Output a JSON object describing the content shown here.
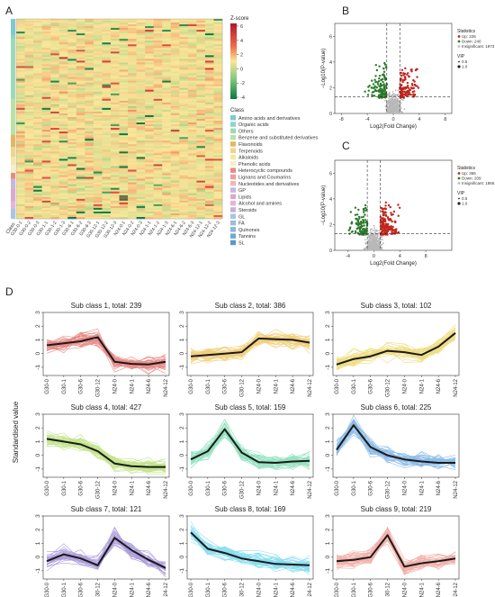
{
  "panels": {
    "A": "A",
    "B": "B",
    "C": "C",
    "D": "D"
  },
  "heatmap": {
    "zscore_title": "Z-score",
    "zscore_ticks": [
      "6",
      "4",
      "2",
      "0",
      "-2",
      "-4"
    ],
    "class_title": "Class",
    "class_column_label": "Class",
    "samples": [
      "G30-0-1",
      "G30-0-2",
      "G30-0-3",
      "G30-1-1",
      "G30-1-2",
      "G30-1-3",
      "G30-6-1",
      "G30-6-2",
      "G30-6-3",
      "G30-12-1",
      "G30-12-2",
      "G30-12-3",
      "N24-0-1",
      "N24-0-2",
      "N24-0-3",
      "N24-1-1",
      "N24-1-2",
      "N24-1-3",
      "N24-6-1",
      "N24-6-2",
      "N24-6-3",
      "N24-12-1",
      "N24-12-2",
      "N24-12-3"
    ],
    "classes": [
      {
        "name": "Amino acids and derivatives",
        "color": "#7fc9cf"
      },
      {
        "name": "Organic acids",
        "color": "#8fd3c6"
      },
      {
        "name": "Others",
        "color": "#9fd9b8"
      },
      {
        "name": "Benzene and substituted derivatives",
        "color": "#b9e2a6"
      },
      {
        "name": "Flavonoids",
        "color": "#e6b75c"
      },
      {
        "name": "Terpenoids",
        "color": "#eed58a"
      },
      {
        "name": "Alkaloids",
        "color": "#f3e8a6"
      },
      {
        "name": "Phenolic acids",
        "color": "#f6efc4"
      },
      {
        "name": "Heterocyclic compounds",
        "color": "#e88a84"
      },
      {
        "name": "Lignans and Coumarins",
        "color": "#ec9e9a"
      },
      {
        "name": "Nucleotides and derivatives",
        "color": "#f0b8b2"
      },
      {
        "name": "GP",
        "color": "#c6b7dd"
      },
      {
        "name": "Lipids",
        "color": "#d9a9cf"
      },
      {
        "name": "Alcohol and amines",
        "color": "#e5b5d7"
      },
      {
        "name": "Steroids",
        "color": "#c9b0d6"
      },
      {
        "name": "GL",
        "color": "#a8c6e4"
      },
      {
        "name": "FA",
        "color": "#9cbddc"
      },
      {
        "name": "Quinones",
        "color": "#88b9da"
      },
      {
        "name": "Tannins",
        "color": "#6fa9d1"
      },
      {
        "name": "SL",
        "color": "#5d99c6"
      }
    ]
  },
  "volcano_b": {
    "ylabel": "−Log10(P-value)",
    "xlabel": "Log2(Fold Change)",
    "x_ticks": [
      "-8",
      "-4",
      "0",
      "4",
      "8"
    ],
    "y_ticks": [
      "0",
      "2",
      "4",
      "6"
    ],
    "legend_title": "Statistics",
    "legend_items": [
      "Up: 226",
      "Down: 240",
      "Insignificant: 1973"
    ],
    "vip_title": "VIP",
    "vip_items": [
      "0.5",
      "1.0"
    ]
  },
  "volcano_c": {
    "ylabel": "−Log10(P-value)",
    "xlabel": "Log2(Fold Change)",
    "x_ticks": [
      "-4",
      "0",
      "4",
      "8"
    ],
    "y_ticks": [
      "0",
      "2",
      "4",
      "6"
    ],
    "legend_title": "Statistics",
    "legend_items": [
      "Up: 365",
      "Down: 209",
      "Insignificant: 1865"
    ],
    "vip_title": "VIP",
    "vip_items": [
      "0.5",
      "1.0"
    ]
  },
  "colors": {
    "up": "#c0271e",
    "down": "#2c7a2c",
    "ns": "#b8b8b8",
    "mean": "#1a1a1a"
  },
  "chart_data": {
    "type": "line",
    "ylabel": "Standardised value",
    "x": [
      "G30-0",
      "G30-1",
      "G30-6",
      "G30-12",
      "N24-0",
      "N24-1",
      "N24-6",
      "N24-12"
    ],
    "y_ticks": [
      "-1",
      "0",
      "1",
      "2",
      "3"
    ],
    "ylim": [
      -1.6,
      3
    ],
    "series": [
      {
        "name": "Sub class 1, total: 239",
        "color": "#d42a23",
        "values": [
          0.6,
          0.75,
          0.9,
          1.2,
          -0.6,
          -0.75,
          -0.8,
          -0.6
        ]
      },
      {
        "name": "Sub class 2, total: 386",
        "color": "#e6a80e",
        "values": [
          -0.2,
          -0.1,
          0.0,
          0.1,
          1.1,
          1.05,
          1.0,
          0.8
        ]
      },
      {
        "name": "Sub class 3, total: 102",
        "color": "#e0c21a",
        "values": [
          -0.8,
          -0.4,
          -0.2,
          0.2,
          0.1,
          -0.1,
          0.5,
          1.5
        ]
      },
      {
        "name": "Sub class 4, total: 427",
        "color": "#8fce2a",
        "values": [
          1.2,
          1.0,
          0.8,
          0.3,
          -0.6,
          -0.8,
          -0.85,
          -0.85
        ]
      },
      {
        "name": "Sub class 5, total: 159",
        "color": "#3bc98a",
        "values": [
          -0.3,
          0.3,
          1.9,
          0.2,
          -0.5,
          -0.55,
          -0.45,
          -0.4
        ]
      },
      {
        "name": "Sub class 6, total: 225",
        "color": "#2f83d6",
        "values": [
          0.4,
          2.2,
          0.6,
          0.0,
          -0.3,
          -0.45,
          -0.55,
          -0.55
        ]
      },
      {
        "name": "Sub class 7, total: 121",
        "color": "#6a4fbe",
        "values": [
          -0.3,
          0.2,
          -0.1,
          -0.6,
          1.4,
          0.5,
          -0.2,
          -0.8
        ]
      },
      {
        "name": "Sub class 8, total: 169",
        "color": "#29c4e6",
        "values": [
          1.8,
          0.6,
          0.3,
          -0.1,
          -0.3,
          -0.5,
          -0.55,
          -0.6
        ]
      },
      {
        "name": "Sub class 9, total: 219",
        "color": "#e76f63",
        "values": [
          -0.3,
          -0.2,
          0.0,
          1.6,
          -0.7,
          -0.45,
          -0.3,
          -0.1
        ]
      }
    ]
  }
}
